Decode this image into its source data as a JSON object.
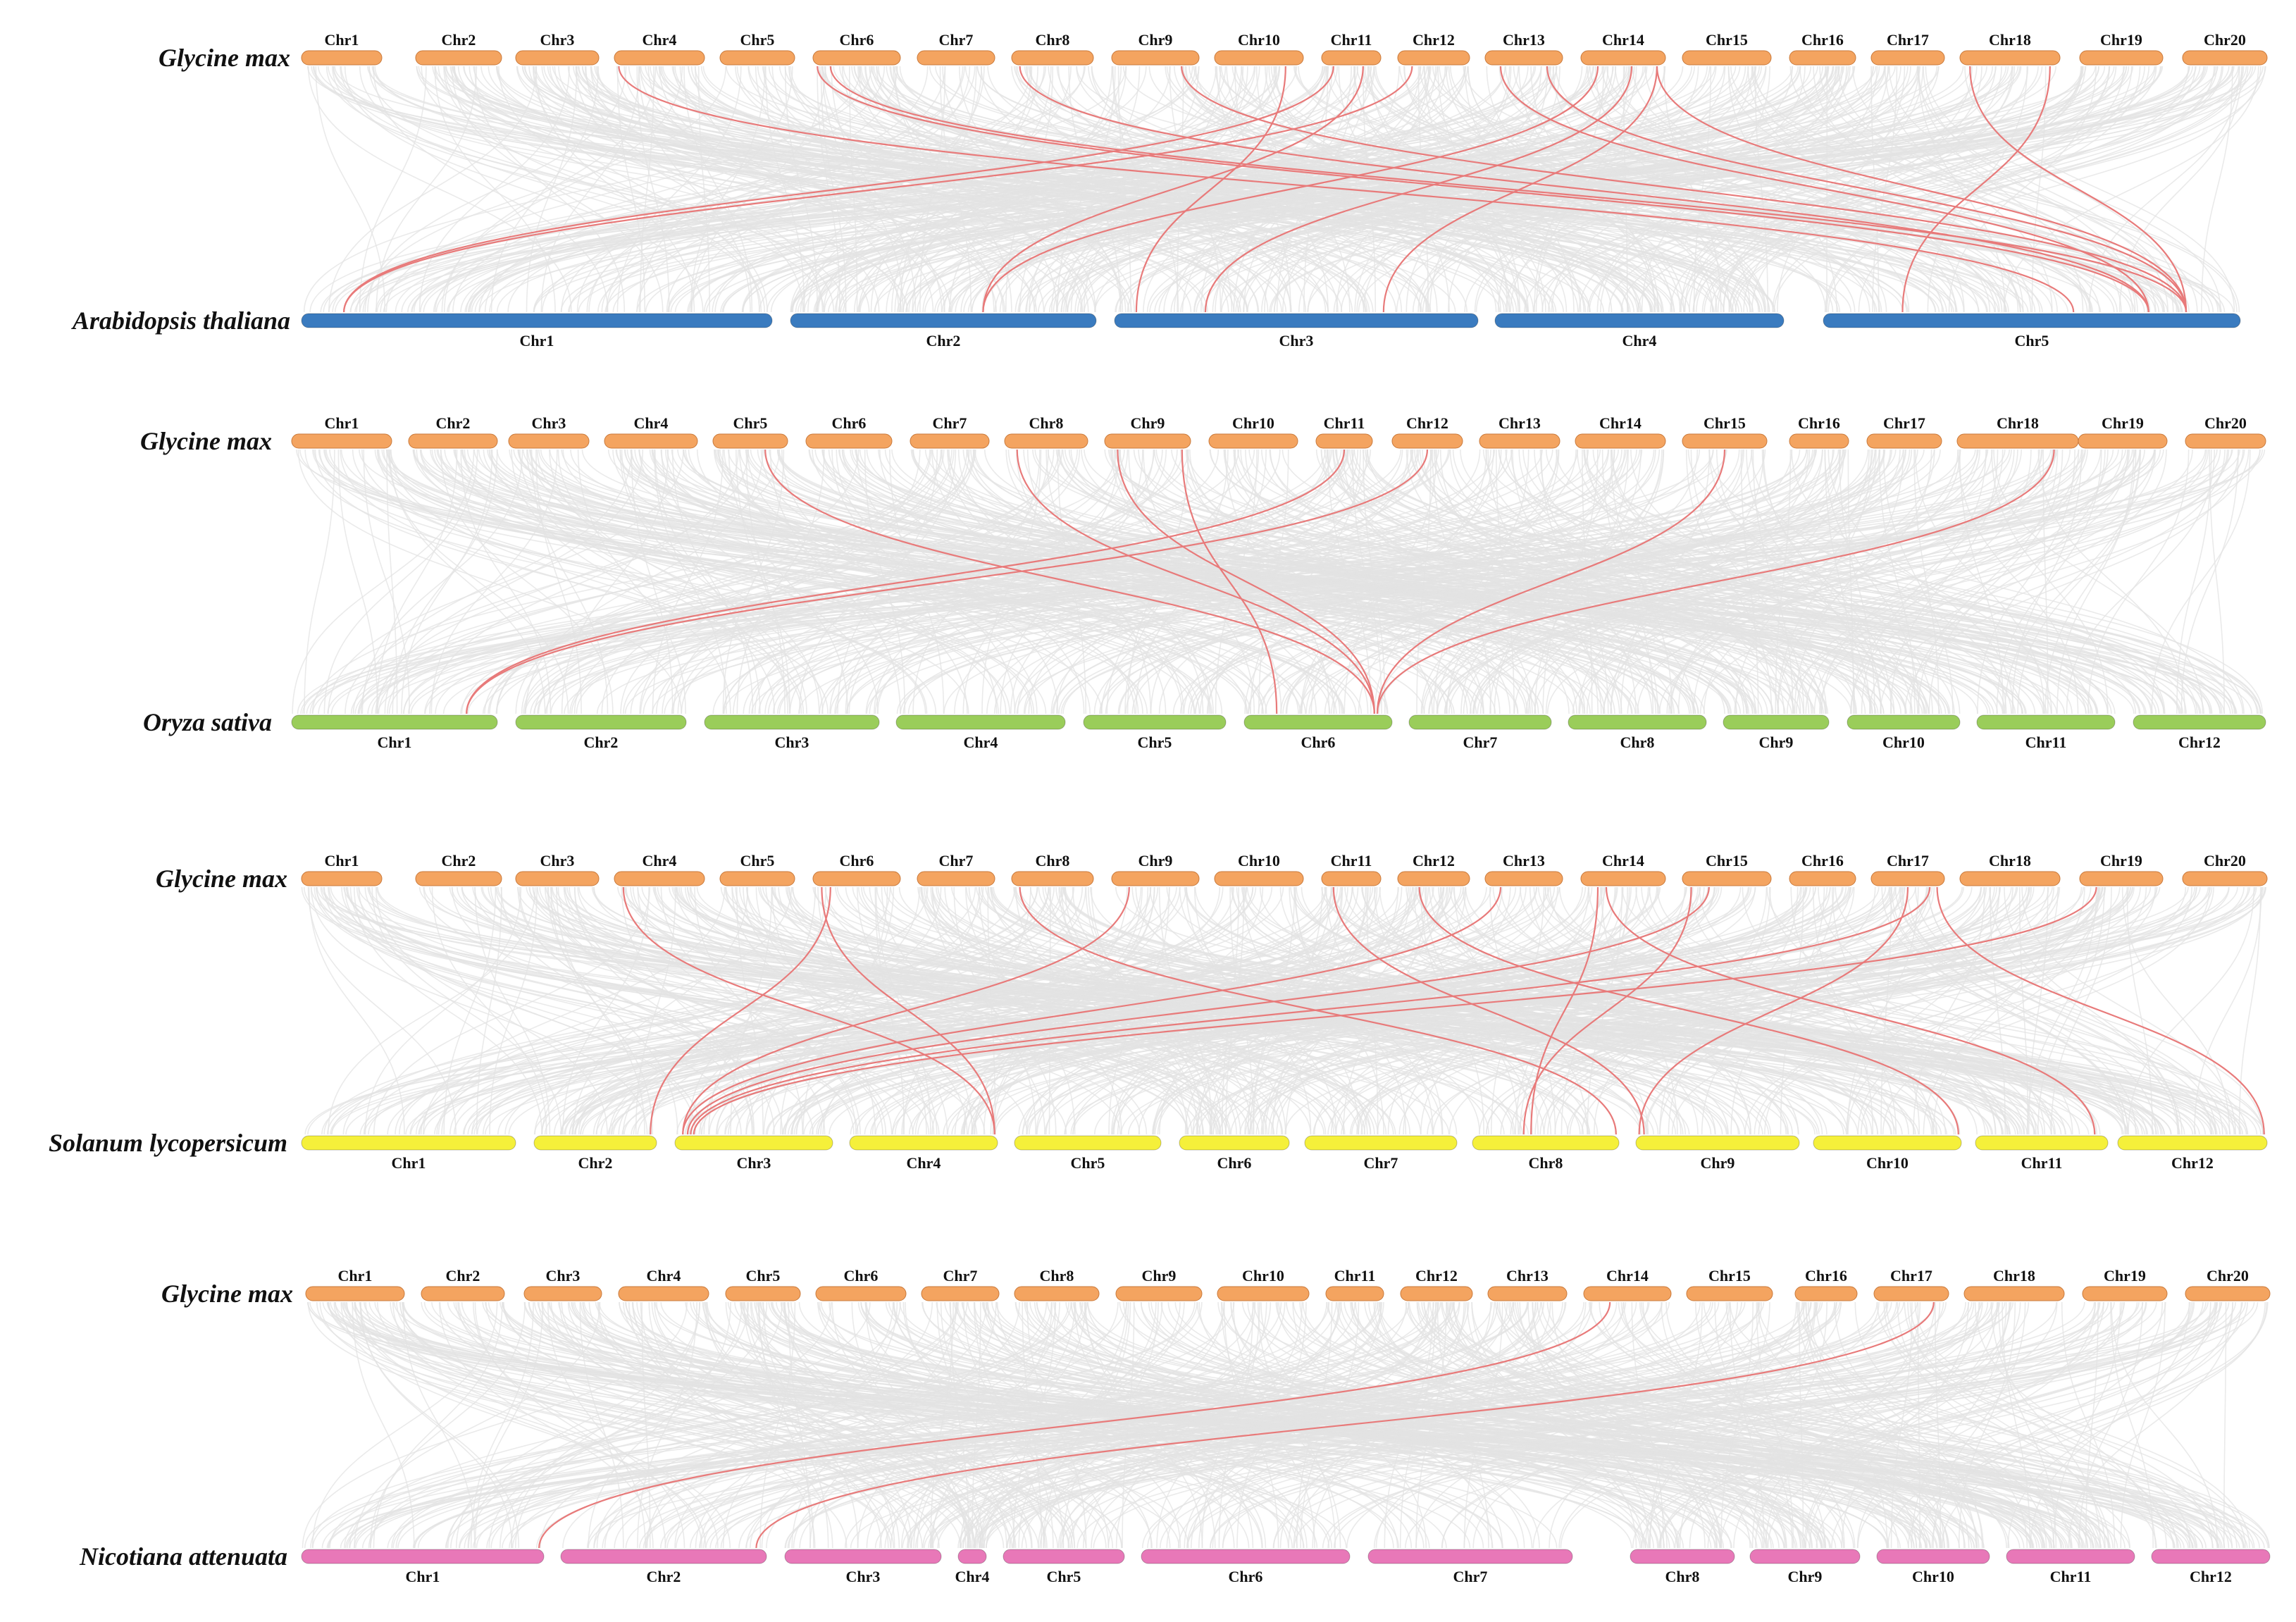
{
  "reference": {
    "species": "Glycine max",
    "color": "#F4A460",
    "chromosomes": [
      "Chr1",
      "Chr2",
      "Chr3",
      "Chr4",
      "Chr5",
      "Chr6",
      "Chr7",
      "Chr8",
      "Chr9",
      "Chr10",
      "Chr11",
      "Chr12",
      "Chr13",
      "Chr14",
      "Chr15",
      "Chr16",
      "Chr17",
      "Chr18",
      "Chr19",
      "Chr20"
    ]
  },
  "colors": {
    "background_links": "#e3e3e3",
    "syntenic_links": "#e87a7a"
  },
  "panels": [
    {
      "target_species": "Arabidopsis thaliana",
      "target_color": "#3A7BBF",
      "target_chromosomes": [
        "Chr1",
        "Chr2",
        "Chr3",
        "Chr4",
        "Chr5"
      ]
    },
    {
      "target_species": "Oryza sativa",
      "target_color": "#9ACD5A",
      "target_chromosomes": [
        "Chr1",
        "Chr2",
        "Chr3",
        "Chr4",
        "Chr5",
        "Chr6",
        "Chr7",
        "Chr8",
        "Chr9",
        "Chr10",
        "Chr11",
        "Chr12"
      ]
    },
    {
      "target_species": "Solanum lycopersicum",
      "target_color": "#F5F03A",
      "target_chromosomes": [
        "Chr1",
        "Chr2",
        "Chr3",
        "Chr4",
        "Chr5",
        "Chr6",
        "Chr7",
        "Chr8",
        "Chr9",
        "Chr10",
        "Chr11",
        "Chr12"
      ]
    },
    {
      "target_species": "Nicotiana attenuata",
      "target_color": "#E878B8",
      "target_chromosomes": [
        "Chr1",
        "Chr2",
        "Chr3",
        "Chr4",
        "Chr5",
        "Chr6",
        "Chr7",
        "Chr8",
        "Chr9",
        "Chr10",
        "Chr11",
        "Chr12"
      ]
    }
  ]
}
